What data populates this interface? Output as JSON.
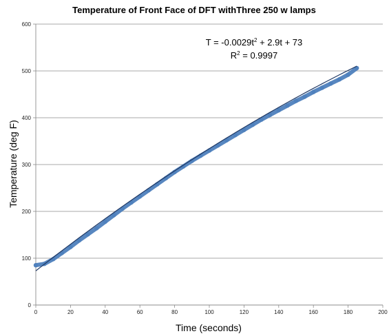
{
  "chart_data": {
    "type": "scatter",
    "title": "Temperature of Front Face of DFT withThree 250 w lamps",
    "xlabel": "Time (seconds)",
    "ylabel": "Temperature (deg F)",
    "xlim": [
      0,
      200
    ],
    "ylim": [
      0,
      600
    ],
    "x_ticks": [
      "0",
      "20",
      "40",
      "60",
      "80",
      "100",
      "120",
      "140",
      "160",
      "180",
      "200"
    ],
    "y_ticks": [
      "0",
      "100",
      "200",
      "300",
      "400",
      "500",
      "600"
    ],
    "grid": {
      "horizontal": true,
      "vertical": false
    },
    "series": [
      {
        "color": "#4f81bd",
        "x": [
          0,
          5,
          10,
          15,
          20,
          25,
          30,
          35,
          40,
          45,
          50,
          55,
          60,
          65,
          70,
          75,
          80,
          85,
          90,
          95,
          100,
          105,
          110,
          115,
          120,
          125,
          130,
          135,
          140,
          145,
          150,
          155,
          160,
          165,
          170,
          175,
          180,
          185
        ],
        "y": [
          85,
          88,
          98,
          111,
          124,
          138,
          151,
          164,
          178,
          192,
          206,
          219,
          232,
          245,
          258,
          271,
          284,
          296,
          308,
          319,
          330,
          341,
          352,
          363,
          374,
          385,
          396,
          406,
          416,
          426,
          436,
          445,
          455,
          464,
          473,
          482,
          492,
          506
        ]
      }
    ],
    "trendline": {
      "type": "polynomial",
      "order": 2,
      "coefficients": [
        -0.0029,
        2.9,
        73
      ],
      "color": "#1f3864",
      "x_range": [
        0,
        185
      ]
    },
    "annotations": {
      "equation_prefix": "T = -0.0029t",
      "equation_exp": "2",
      "equation_suffix": " + 2.9t + 73",
      "r2_prefix": "R",
      "r2_exp": "2",
      "r2_suffix": " = 0.9997"
    }
  }
}
